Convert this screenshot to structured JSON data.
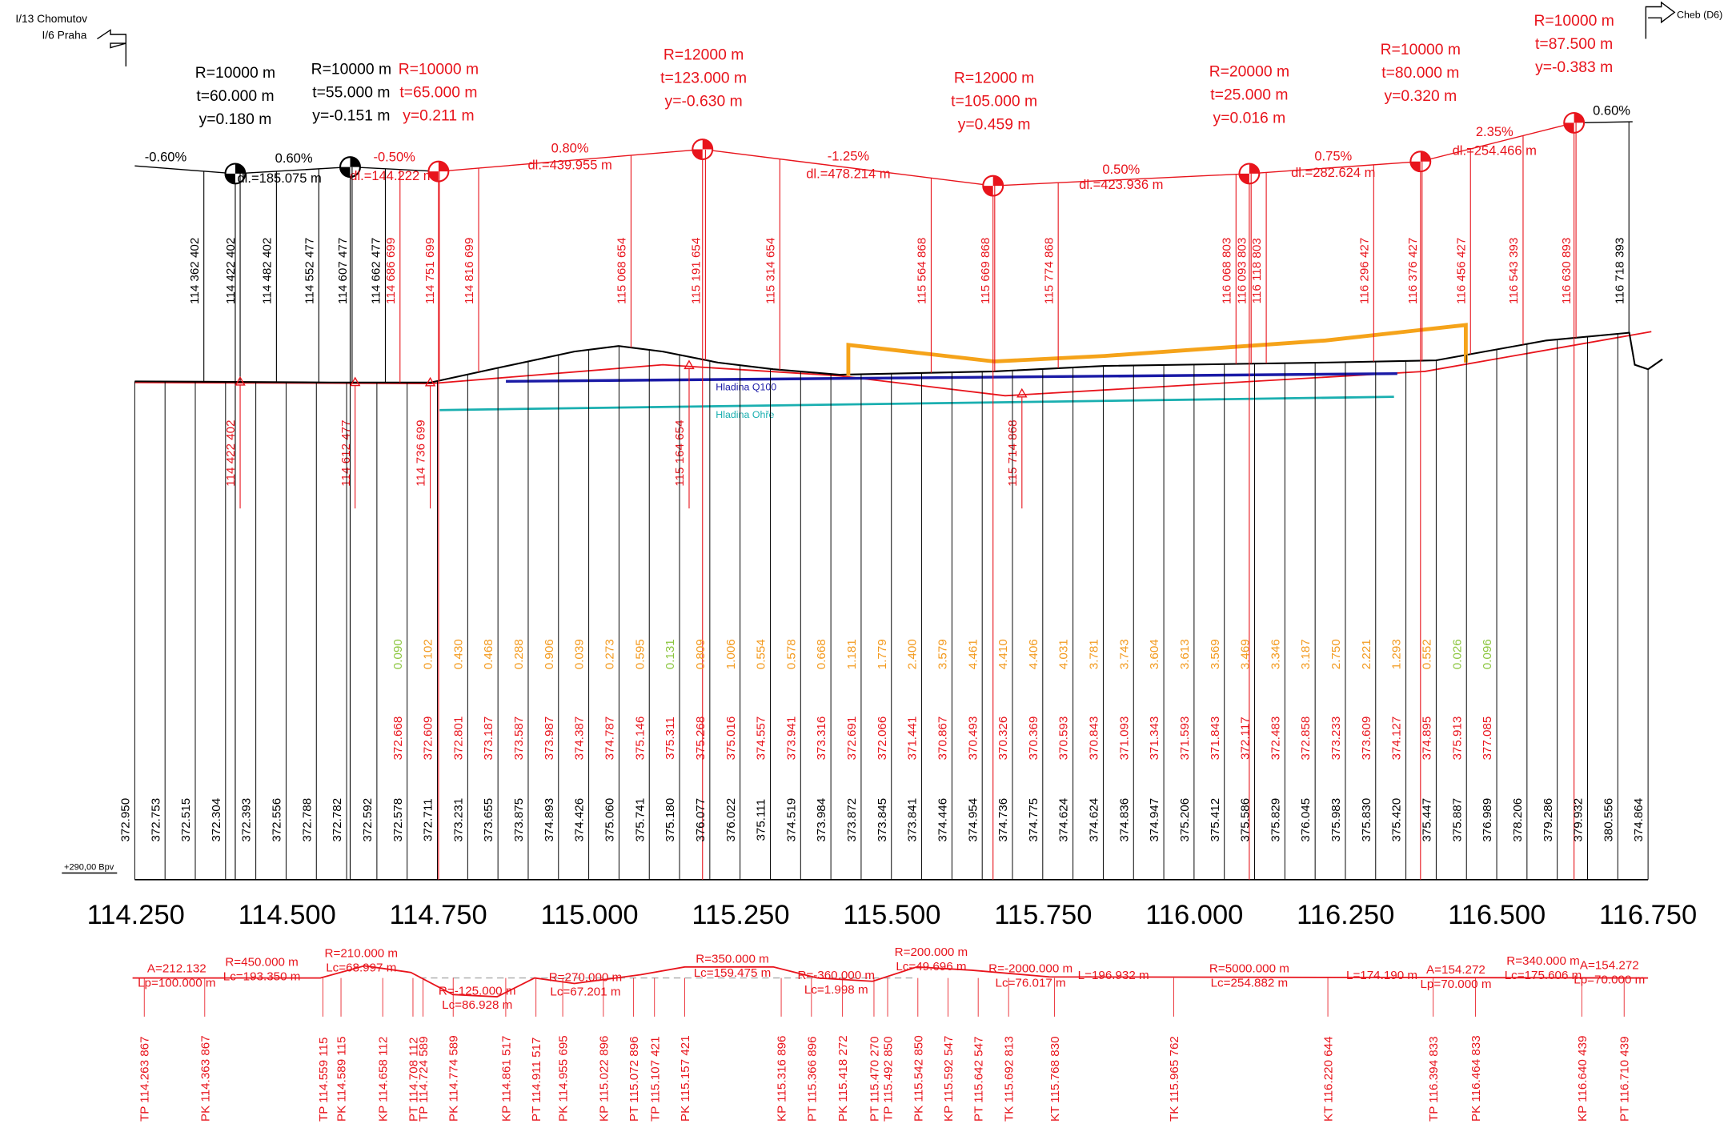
{
  "header": {
    "left_road": "I/13 Chomutov",
    "left_dir": "I/6 Praha",
    "right_dir": "Cheb (D6)"
  },
  "vertical_curves": [
    {
      "R": "R=10000 m",
      "t": "t=60.000 m",
      "y": "y=0.180 m",
      "color": "#000000"
    },
    {
      "R": "R=10000 m",
      "t": "t=55.000 m",
      "y": "y=-0.151 m",
      "color": "#000000"
    },
    {
      "R": "R=10000 m",
      "t": "t=65.000 m",
      "y": "y=0.211 m",
      "color": "#e8141c"
    },
    {
      "R": "R=12000 m",
      "t": "t=123.000 m",
      "y": "y=-0.630 m",
      "color": "#e8141c"
    },
    {
      "R": "R=12000 m",
      "t": "t=105.000 m",
      "y": "y=0.459 m",
      "color": "#e8141c"
    },
    {
      "R": "R=20000 m",
      "t": "t=25.000 m",
      "y": "y=0.016 m",
      "color": "#e8141c"
    },
    {
      "R": "R=10000 m",
      "t": "t=80.000 m",
      "y": "y=0.320 m",
      "color": "#e8141c"
    },
    {
      "R": "R=10000 m",
      "t": "t=87.500 m",
      "y": "y=-0.383 m",
      "color": "#e8141c"
    }
  ],
  "grades": [
    {
      "grade": "-0.60%",
      "color": "#000000"
    },
    {
      "grade": "0.60%",
      "length": "dl.=185.075 m",
      "color": "#000000"
    },
    {
      "grade": "-0.50%",
      "length": "dl.=144.222 m",
      "color": "#e8141c"
    },
    {
      "grade": "0.80%",
      "length": "dl.=439.955 m",
      "color": "#e8141c"
    },
    {
      "grade": "-1.25%",
      "length": "dl.=478.214 m",
      "color": "#e8141c"
    },
    {
      "grade": "0.50%",
      "length": "dl.=423.936 m",
      "color": "#e8141c"
    },
    {
      "grade": "0.75%",
      "length": "dl.=282.624 m",
      "color": "#e8141c"
    },
    {
      "grade": "2.35%",
      "length": "dl.=254.466 m",
      "color": "#e8141c"
    },
    {
      "grade": "0.60%",
      "color": "#000000"
    }
  ],
  "top_stations": [
    {
      "label": "114 362 402",
      "color": "#000000"
    },
    {
      "label": "114 422 402",
      "color": "#000000"
    },
    {
      "label": "114 482 402",
      "color": "#000000"
    },
    {
      "label": "114 552 477",
      "color": "#000000"
    },
    {
      "label": "114 607 477",
      "color": "#000000"
    },
    {
      "label": "114 662 477",
      "color": "#000000"
    },
    {
      "label": "114 686 699",
      "color": "#e8141c"
    },
    {
      "label": "114 751 699",
      "color": "#e8141c"
    },
    {
      "label": "114 816 699",
      "color": "#e8141c"
    },
    {
      "label": "115 068 654",
      "color": "#e8141c"
    },
    {
      "label": "115 191 654",
      "color": "#e8141c"
    },
    {
      "label": "115 314 654",
      "color": "#e8141c"
    },
    {
      "label": "115 564 868",
      "color": "#e8141c"
    },
    {
      "label": "115 669 868",
      "color": "#e8141c"
    },
    {
      "label": "115 774 868",
      "color": "#e8141c"
    },
    {
      "label": "116 068 803",
      "color": "#e8141c"
    },
    {
      "label": "116 093 803",
      "color": "#e8141c"
    },
    {
      "label": "116 118 803",
      "color": "#e8141c"
    },
    {
      "label": "116 296 427",
      "color": "#e8141c"
    },
    {
      "label": "116 376 427",
      "color": "#e8141c"
    },
    {
      "label": "116 456 427",
      "color": "#e8141c"
    },
    {
      "label": "116 543 393",
      "color": "#e8141c"
    },
    {
      "label": "116 630 893",
      "color": "#e8141c"
    },
    {
      "label": "116 718 393",
      "color": "#000000"
    }
  ],
  "low_stations": [
    "114 422 402",
    "114 612 477",
    "114 736 699",
    "115 164 654",
    "115 714 868"
  ],
  "water": {
    "q100": "Hladina Q100",
    "ohre": "Hladina Ohře"
  },
  "fill_depths": [
    "0.090",
    "0.102",
    "0.430",
    "0.468",
    "0.288",
    "0.906",
    "0.039",
    "0.273",
    "0.595",
    "0.131",
    "0.809",
    "1.006",
    "0.554",
    "0.578",
    "0.668",
    "1.181",
    "1.779",
    "2.400",
    "3.579",
    "4.461",
    "4.410",
    "4.406",
    "4.031",
    "3.781",
    "3.743",
    "3.604",
    "3.613",
    "3.569",
    "3.469",
    "3.346",
    "3.187",
    "2.750",
    "2.221",
    "1.293",
    "0.552",
    "0.026",
    "0.096"
  ],
  "fill_colors": [
    "#8cc63f",
    "#f39a1e",
    "#f39a1e",
    "#f39a1e",
    "#f39a1e",
    "#f39a1e",
    "#f39a1e",
    "#f39a1e",
    "#f39a1e",
    "#8cc63f",
    "#f39a1e",
    "#f39a1e",
    "#f39a1e",
    "#f39a1e",
    "#f39a1e",
    "#f39a1e",
    "#f39a1e",
    "#f39a1e",
    "#f39a1e",
    "#f39a1e",
    "#f39a1e",
    "#f39a1e",
    "#f39a1e",
    "#f39a1e",
    "#f39a1e",
    "#f39a1e",
    "#f39a1e",
    "#f39a1e",
    "#f39a1e",
    "#f39a1e",
    "#f39a1e",
    "#f39a1e",
    "#f39a1e",
    "#f39a1e",
    "#f39a1e",
    "#8cc63f",
    "#8cc63f"
  ],
  "design_heights": [
    "372.668",
    "372.609",
    "372.801",
    "373.187",
    "373.587",
    "373.987",
    "374.387",
    "374.787",
    "375.146",
    "375.311",
    "375.268",
    "375.016",
    "374.557",
    "373.941",
    "373.316",
    "372.691",
    "372.066",
    "371.441",
    "370.867",
    "370.493",
    "370.326",
    "370.369",
    "370.593",
    "370.843",
    "371.093",
    "371.343",
    "371.593",
    "371.843",
    "372.117",
    "372.483",
    "372.858",
    "373.233",
    "373.609",
    "374.127",
    "374.895",
    "375.913",
    "377.085"
  ],
  "terrain_heights": [
    "372.950",
    "372.753",
    "372.515",
    "372.304",
    "372.393",
    "372.556",
    "372.788",
    "372.782",
    "372.592",
    "372.578",
    "372.711",
    "373.231",
    "373.655",
    "373.875",
    "374.893",
    "374.426",
    "375.060",
    "375.741",
    "375.180",
    "376.077",
    "376.022",
    "375.111",
    "374.519",
    "373.984",
    "373.872",
    "373.845",
    "373.841",
    "374.446",
    "374.954",
    "374.736",
    "374.775",
    "374.624",
    "374.624",
    "374.836",
    "374.947",
    "375.206",
    "375.412",
    "375.586",
    "375.829",
    "376.045",
    "375.983",
    "375.830",
    "375.420",
    "375.447",
    "375.887",
    "376.989",
    "378.206",
    "379.286",
    "379.932",
    "380.556",
    "374.864"
  ],
  "datum": "+290,00 Bpv",
  "stations": [
    "114.250",
    "114.500",
    "114.750",
    "115.000",
    "115.250",
    "115.500",
    "115.750",
    "116.000",
    "116.250",
    "116.500",
    "116.750"
  ],
  "alignment": [
    [
      "A=212.132",
      "Lp=100.000 m"
    ],
    [
      "R=450.000 m",
      "Lc=193.350 m"
    ],
    [
      "R=210.000 m",
      "Lc=68.997 m"
    ],
    [
      "R=-125.000 m",
      "Lc=86.928 m"
    ],
    [
      "R=270.000 m",
      "Lc=67.201 m"
    ],
    [
      "R=350.000 m",
      "Lc=159.475 m"
    ],
    [
      "R=-360.000 m",
      "Lc=1.998 m"
    ],
    [
      "R=200.000 m",
      "Lc=49.696 m"
    ],
    [
      "R=-2000.000 m",
      "Lc=76.017 m"
    ],
    [
      "L=196.932 m"
    ],
    [
      "R=5000.000 m",
      "Lc=254.882 m"
    ],
    [
      "L=174.190 m"
    ],
    [
      "A=154.272",
      "Lp=70.000 m"
    ],
    [
      "R=340.000 m",
      "Lc=175.606 m"
    ],
    [
      "A=154.272",
      "Lp=70.000 m"
    ]
  ],
  "points": [
    "TP 114.263 867",
    "PK 114.363 867",
    "TP 114.559 115",
    "PK 114.589 115",
    "KP 114.658 112",
    "PT 114.708 112",
    "TP 114.724 589",
    "PK 114.774 589",
    "KP 114.861 517",
    "PT 114.911 517",
    "PK 114.955 695",
    "KP 115.022 896",
    "PT 115.072 896",
    "TP 115.107 421",
    "PK 115.157 421",
    "KP 115.316 896",
    "PT 115.366 896",
    "PK 115.418 272",
    "PT 115.470 270",
    "TP 115.492 850",
    "PK 115.542 850",
    "KP 115.592 547",
    "PT 115.642 547",
    "TK 115.692 813",
    "KT 115.768 830",
    "TK 115.965 762",
    "KT 116.220 644",
    "TP 116.394 833",
    "PK 116.464 833",
    "KP 116.640 439",
    "PT 116.710 439"
  ]
}
